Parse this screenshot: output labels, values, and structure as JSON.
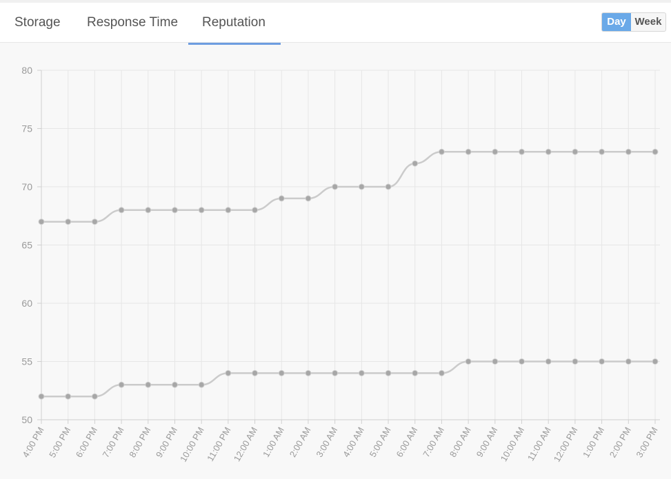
{
  "tabs": [
    {
      "label": "Storage",
      "active": false
    },
    {
      "label": "Response Time",
      "active": false
    },
    {
      "label": "Reputation",
      "active": true
    }
  ],
  "range": {
    "day_label": "Day",
    "week_label": "Week",
    "selected": "Day"
  },
  "colors": {
    "accent": "#6d9de0",
    "toggle_active": "#6aa9e8",
    "series_line": "#cbcbcb",
    "series_point": "#a7a7a7",
    "grid": "#e6e6e6",
    "axis_text": "#9a9a9a"
  },
  "chart_data": {
    "type": "line",
    "categories": [
      "4:00 PM",
      "5:00 PM",
      "6:00 PM",
      "7:00 PM",
      "8:00 PM",
      "9:00 PM",
      "10:00 PM",
      "11:00 PM",
      "12:00 AM",
      "1:00 AM",
      "2:00 AM",
      "3:00 AM",
      "4:00 AM",
      "5:00 AM",
      "6:00 AM",
      "7:00 AM",
      "8:00 AM",
      "9:00 AM",
      "10:00 AM",
      "11:00 AM",
      "12:00 PM",
      "1:00 PM",
      "2:00 PM",
      "3:00 PM"
    ],
    "series": [
      {
        "values": [
          67,
          67,
          67,
          68,
          68,
          68,
          68,
          68,
          68,
          69,
          69,
          70,
          70,
          70,
          72,
          73,
          73,
          73,
          73,
          73,
          73,
          73,
          73,
          73
        ]
      },
      {
        "values": [
          52,
          52,
          52,
          53,
          53,
          53,
          53,
          54,
          54,
          54,
          54,
          54,
          54,
          54,
          54,
          54,
          55,
          55,
          55,
          55,
          55,
          55,
          55,
          55
        ]
      }
    ],
    "ylim": [
      50,
      80
    ],
    "yticks": [
      50,
      55,
      60,
      65,
      70,
      75,
      80
    ],
    "grid": true,
    "legend": "none"
  }
}
